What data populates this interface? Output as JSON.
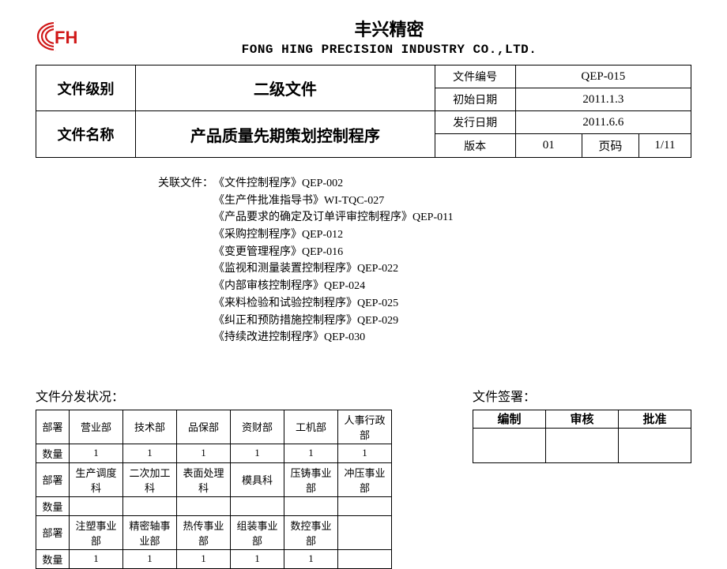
{
  "header": {
    "logo_text": "FH",
    "company_cn": "丰兴精密",
    "company_en": "FONG HING PRECISION INDUSTRY CO.,LTD."
  },
  "info": {
    "level_label": "文件级别",
    "level_value": "二级文件",
    "name_label": "文件名称",
    "name_value": "产品质量先期策划控制程序",
    "docno_label": "文件编号",
    "docno_value": "QEP-015",
    "initdate_label": "初始日期",
    "initdate_value": "2011.1.3",
    "issuedate_label": "发行日期",
    "issuedate_value": "2011.6.6",
    "version_label": "版本",
    "version_value": "01",
    "page_label": "页码",
    "page_value": "1/11"
  },
  "related": {
    "label": "关联文件：",
    "items": [
      "《文件控制程序》QEP-002",
      "《生产件批准指导书》WI-TQC-027",
      "《产品要求的确定及订单评审控制程序》QEP-011",
      "《采购控制程序》QEP-012",
      "《变更管理程序》QEP-016",
      "《监视和测量装置控制程序》QEP-022",
      "《内部审核控制程序》QEP-024",
      "《来料检验和试验控制程序》QEP-025",
      "《纠正和预防措施控制程序》QEP-029",
      "《持续改进控制程序》QEP-030"
    ]
  },
  "distribution": {
    "title": "文件分发状况：",
    "dept_label": "部署",
    "qty_label": "数量",
    "rows": [
      {
        "depts": [
          "营业部",
          "技术部",
          "品保部",
          "资财部",
          "工机部",
          "人事行政部"
        ],
        "qtys": [
          "1",
          "1",
          "1",
          "1",
          "1",
          "1"
        ]
      },
      {
        "depts": [
          "生产调度科",
          "二次加工科",
          "表面处理科",
          "模具科",
          "压铸事业部",
          "冲压事业部"
        ],
        "qtys": [
          "",
          "",
          "",
          "",
          "",
          ""
        ]
      },
      {
        "depts": [
          "注塑事业部",
          "精密轴事业部",
          "热传事业部",
          "组装事业部",
          "数控事业部",
          ""
        ],
        "qtys": [
          "1",
          "1",
          "1",
          "1",
          "1",
          ""
        ]
      }
    ]
  },
  "signature": {
    "title": "文件签署：",
    "cols": [
      "编制",
      "审核",
      "批准"
    ]
  },
  "colors": {
    "logo_red": "#d01818",
    "text": "#000000"
  }
}
